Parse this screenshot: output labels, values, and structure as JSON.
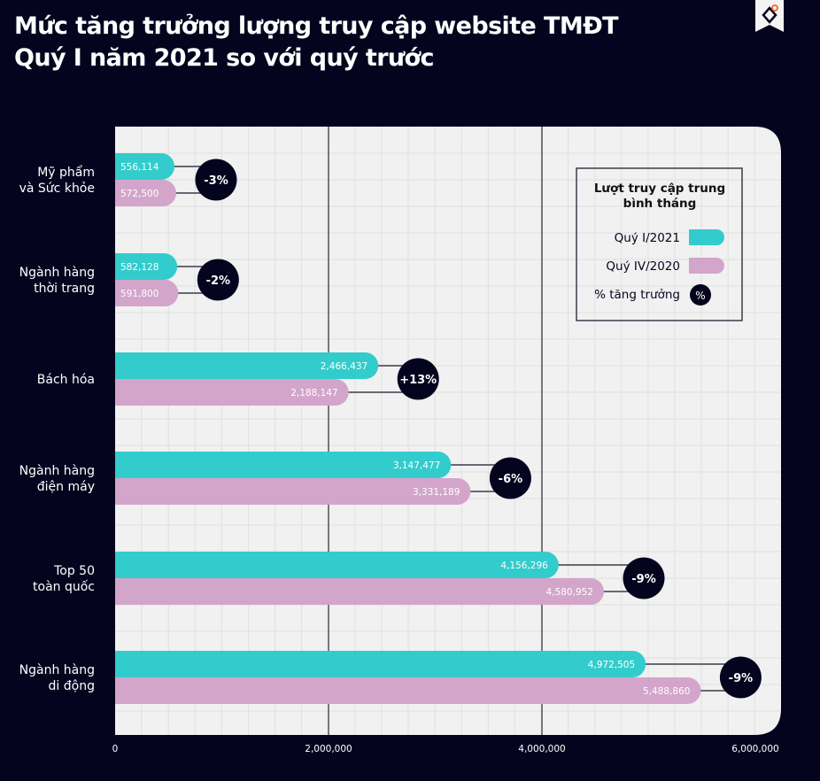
{
  "chart_data": {
    "type": "bar",
    "orientation": "horizontal",
    "title": [
      "Mức tăng trưởng lượng truy cập website TMĐT",
      "Quý I năm 2021 so với quý trước"
    ],
    "categories": [
      "Mỹ phẩm\nvà Sức khỏe",
      "Ngành hàng\nthời trang",
      "Bách hóa",
      "Ngành hàng\nđiện máy",
      "Top 50\ntoàn quốc",
      "Ngành hàng\ndi động"
    ],
    "series": [
      {
        "name": "Quý I/2021",
        "color": "#33cccc",
        "values": [
          556114,
          582128,
          2466437,
          3147477,
          4156296,
          4972505
        ]
      },
      {
        "name": "Quý IV/2020",
        "color": "#d3a5cb",
        "values": [
          572500,
          591800,
          2188147,
          3331189,
          4580952,
          5488860
        ]
      }
    ],
    "growth": {
      "name": "% tăng trưởng",
      "symbol": "%",
      "color": "#04041f",
      "labels": [
        "-3%",
        "-2%",
        "+13%",
        "-6%",
        "-9%",
        "-9%"
      ]
    },
    "value_labels": {
      "q1": [
        "556,114",
        "582,128",
        "2,466,437",
        "3,147,477",
        "4,156,296",
        "4,972,505"
      ],
      "q4": [
        "572,500",
        "591,800",
        "2,188,147",
        "3,331,189",
        "4,580,952",
        "5,488,860"
      ]
    },
    "legend_title": [
      "Lượt truy cập trung",
      "bình tháng"
    ],
    "legend_position": "top-right",
    "xlim": [
      0,
      6000000
    ],
    "xticks": [
      0,
      2000000,
      4000000,
      6000000
    ],
    "xtick_labels": [
      "0",
      "2,000,000",
      "4,000,000",
      "6,000,000"
    ],
    "grid": true,
    "background": "#04041f",
    "plot_background": "#f1f1f1"
  }
}
